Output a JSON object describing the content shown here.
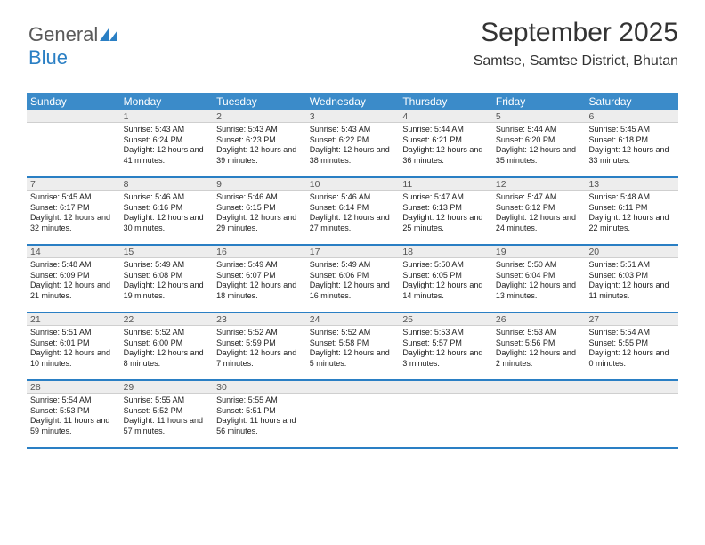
{
  "logo": {
    "text1": "General",
    "text2": "Blue",
    "color_gray": "#5a5a5a",
    "color_blue": "#2a7fc4"
  },
  "title": "September 2025",
  "location": "Samtse, Samtse District, Bhutan",
  "day_names": [
    "Sunday",
    "Monday",
    "Tuesday",
    "Wednesday",
    "Thursday",
    "Friday",
    "Saturday"
  ],
  "header_bg": "#3b8bc9",
  "border_color": "#2a7fc4",
  "daynum_bg": "#ededed",
  "start_offset": 1,
  "days_in_month": 30,
  "days": {
    "1": {
      "sr": "5:43 AM",
      "ss": "6:24 PM",
      "dl": "12 hours and 41 minutes."
    },
    "2": {
      "sr": "5:43 AM",
      "ss": "6:23 PM",
      "dl": "12 hours and 39 minutes."
    },
    "3": {
      "sr": "5:43 AM",
      "ss": "6:22 PM",
      "dl": "12 hours and 38 minutes."
    },
    "4": {
      "sr": "5:44 AM",
      "ss": "6:21 PM",
      "dl": "12 hours and 36 minutes."
    },
    "5": {
      "sr": "5:44 AM",
      "ss": "6:20 PM",
      "dl": "12 hours and 35 minutes."
    },
    "6": {
      "sr": "5:45 AM",
      "ss": "6:18 PM",
      "dl": "12 hours and 33 minutes."
    },
    "7": {
      "sr": "5:45 AM",
      "ss": "6:17 PM",
      "dl": "12 hours and 32 minutes."
    },
    "8": {
      "sr": "5:46 AM",
      "ss": "6:16 PM",
      "dl": "12 hours and 30 minutes."
    },
    "9": {
      "sr": "5:46 AM",
      "ss": "6:15 PM",
      "dl": "12 hours and 29 minutes."
    },
    "10": {
      "sr": "5:46 AM",
      "ss": "6:14 PM",
      "dl": "12 hours and 27 minutes."
    },
    "11": {
      "sr": "5:47 AM",
      "ss": "6:13 PM",
      "dl": "12 hours and 25 minutes."
    },
    "12": {
      "sr": "5:47 AM",
      "ss": "6:12 PM",
      "dl": "12 hours and 24 minutes."
    },
    "13": {
      "sr": "5:48 AM",
      "ss": "6:11 PM",
      "dl": "12 hours and 22 minutes."
    },
    "14": {
      "sr": "5:48 AM",
      "ss": "6:09 PM",
      "dl": "12 hours and 21 minutes."
    },
    "15": {
      "sr": "5:49 AM",
      "ss": "6:08 PM",
      "dl": "12 hours and 19 minutes."
    },
    "16": {
      "sr": "5:49 AM",
      "ss": "6:07 PM",
      "dl": "12 hours and 18 minutes."
    },
    "17": {
      "sr": "5:49 AM",
      "ss": "6:06 PM",
      "dl": "12 hours and 16 minutes."
    },
    "18": {
      "sr": "5:50 AM",
      "ss": "6:05 PM",
      "dl": "12 hours and 14 minutes."
    },
    "19": {
      "sr": "5:50 AM",
      "ss": "6:04 PM",
      "dl": "12 hours and 13 minutes."
    },
    "20": {
      "sr": "5:51 AM",
      "ss": "6:03 PM",
      "dl": "12 hours and 11 minutes."
    },
    "21": {
      "sr": "5:51 AM",
      "ss": "6:01 PM",
      "dl": "12 hours and 10 minutes."
    },
    "22": {
      "sr": "5:52 AM",
      "ss": "6:00 PM",
      "dl": "12 hours and 8 minutes."
    },
    "23": {
      "sr": "5:52 AM",
      "ss": "5:59 PM",
      "dl": "12 hours and 7 minutes."
    },
    "24": {
      "sr": "5:52 AM",
      "ss": "5:58 PM",
      "dl": "12 hours and 5 minutes."
    },
    "25": {
      "sr": "5:53 AM",
      "ss": "5:57 PM",
      "dl": "12 hours and 3 minutes."
    },
    "26": {
      "sr": "5:53 AM",
      "ss": "5:56 PM",
      "dl": "12 hours and 2 minutes."
    },
    "27": {
      "sr": "5:54 AM",
      "ss": "5:55 PM",
      "dl": "12 hours and 0 minutes."
    },
    "28": {
      "sr": "5:54 AM",
      "ss": "5:53 PM",
      "dl": "11 hours and 59 minutes."
    },
    "29": {
      "sr": "5:55 AM",
      "ss": "5:52 PM",
      "dl": "11 hours and 57 minutes."
    },
    "30": {
      "sr": "5:55 AM",
      "ss": "5:51 PM",
      "dl": "11 hours and 56 minutes."
    }
  },
  "labels": {
    "sunrise": "Sunrise:",
    "sunset": "Sunset:",
    "daylight": "Daylight:"
  }
}
